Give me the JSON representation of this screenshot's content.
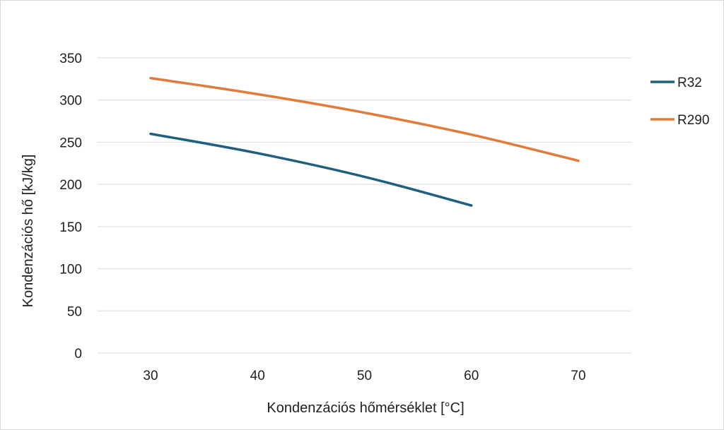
{
  "chart_data": {
    "type": "line",
    "title": "",
    "xlabel": "Kondenzációs hőmérséklet [°C]",
    "ylabel": "Kondenzációs hő  [kJ/kg]",
    "x": [
      30,
      40,
      50,
      60,
      70
    ],
    "categories": [
      "30",
      "40",
      "50",
      "60",
      "70"
    ],
    "ylim": [
      0,
      350
    ],
    "yticks": [
      "0",
      "50",
      "100",
      "150",
      "200",
      "250",
      "300",
      "350"
    ],
    "grid": true,
    "legend_position": "right",
    "series": [
      {
        "name": "R32",
        "color": "#1f5f7f",
        "values": [
          260,
          237,
          209,
          175,
          null
        ]
      },
      {
        "name": "R290",
        "color": "#e07b39",
        "values": [
          326,
          307,
          285,
          259,
          228
        ]
      }
    ]
  }
}
